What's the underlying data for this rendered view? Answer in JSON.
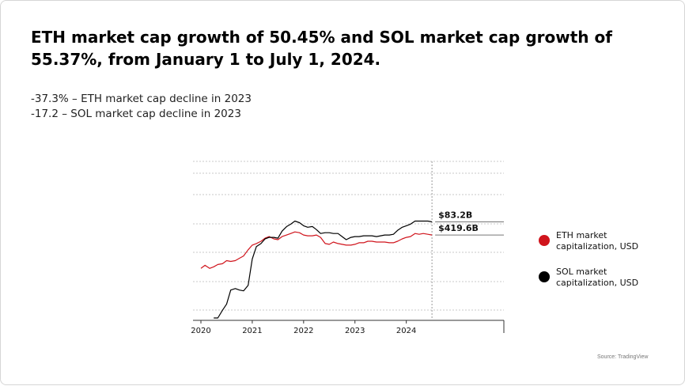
{
  "header": {
    "title": "ETH market cap growth of 50.45% and SOL market cap growth of 55.37%, from January 1 to July 1, 2024."
  },
  "stats": [
    "-37.3% – ETH market cap decline in 2023",
    "-17.2 – SOL market cap decline in 2023"
  ],
  "legend": [
    {
      "label": "ETH market capitalization, USD",
      "color": "#d0141c"
    },
    {
      "label": "SOL market capitalization, USD",
      "color": "#000000"
    }
  ],
  "source": "Source: TradingView",
  "chart_data": {
    "type": "line",
    "x_ticks": [
      "2020",
      "2021",
      "2022",
      "2023",
      "2024"
    ],
    "x_range": [
      2020.0,
      2025.9
    ],
    "grid": true,
    "y_scale": "unlabeled",
    "series": [
      {
        "name": "ETH market capitalization, USD",
        "color": "#d0141c",
        "last_label": "$419.6B",
        "points": [
          [
            2020.0,
            0.32
          ],
          [
            2020.08,
            0.34
          ],
          [
            2020.17,
            0.32
          ],
          [
            2020.25,
            0.33
          ],
          [
            2020.33,
            0.345
          ],
          [
            2020.42,
            0.35
          ],
          [
            2020.5,
            0.37
          ],
          [
            2020.58,
            0.365
          ],
          [
            2020.67,
            0.37
          ],
          [
            2020.75,
            0.385
          ],
          [
            2020.83,
            0.4
          ],
          [
            2020.92,
            0.44
          ],
          [
            2021.0,
            0.47
          ],
          [
            2021.08,
            0.48
          ],
          [
            2021.17,
            0.495
          ],
          [
            2021.25,
            0.515
          ],
          [
            2021.33,
            0.525
          ],
          [
            2021.42,
            0.51
          ],
          [
            2021.5,
            0.505
          ],
          [
            2021.58,
            0.525
          ],
          [
            2021.67,
            0.535
          ],
          [
            2021.75,
            0.545
          ],
          [
            2021.83,
            0.555
          ],
          [
            2021.92,
            0.55
          ],
          [
            2022.0,
            0.535
          ],
          [
            2022.08,
            0.53
          ],
          [
            2022.17,
            0.53
          ],
          [
            2022.25,
            0.535
          ],
          [
            2022.33,
            0.52
          ],
          [
            2022.42,
            0.48
          ],
          [
            2022.5,
            0.475
          ],
          [
            2022.58,
            0.49
          ],
          [
            2022.67,
            0.48
          ],
          [
            2022.75,
            0.475
          ],
          [
            2022.83,
            0.47
          ],
          [
            2022.92,
            0.47
          ],
          [
            2023.0,
            0.475
          ],
          [
            2023.08,
            0.485
          ],
          [
            2023.17,
            0.485
          ],
          [
            2023.25,
            0.495
          ],
          [
            2023.33,
            0.495
          ],
          [
            2023.42,
            0.49
          ],
          [
            2023.5,
            0.49
          ],
          [
            2023.58,
            0.49
          ],
          [
            2023.67,
            0.485
          ],
          [
            2023.75,
            0.485
          ],
          [
            2023.83,
            0.495
          ],
          [
            2023.92,
            0.51
          ],
          [
            2024.0,
            0.52
          ],
          [
            2024.08,
            0.525
          ],
          [
            2024.17,
            0.545
          ],
          [
            2024.25,
            0.54
          ],
          [
            2024.33,
            0.545
          ],
          [
            2024.42,
            0.54
          ],
          [
            2024.5,
            0.535
          ]
        ]
      },
      {
        "name": "SOL market capitalization, USD",
        "color": "#000000",
        "last_label": "$83.2B",
        "points": [
          [
            2020.25,
            0.0
          ],
          [
            2020.33,
            0.0
          ],
          [
            2020.42,
            0.05
          ],
          [
            2020.5,
            0.09
          ],
          [
            2020.58,
            0.18
          ],
          [
            2020.67,
            0.19
          ],
          [
            2020.75,
            0.18
          ],
          [
            2020.83,
            0.175
          ],
          [
            2020.92,
            0.21
          ],
          [
            2021.0,
            0.38
          ],
          [
            2021.08,
            0.46
          ],
          [
            2021.17,
            0.48
          ],
          [
            2021.25,
            0.51
          ],
          [
            2021.33,
            0.52
          ],
          [
            2021.42,
            0.52
          ],
          [
            2021.5,
            0.515
          ],
          [
            2021.58,
            0.56
          ],
          [
            2021.67,
            0.59
          ],
          [
            2021.75,
            0.605
          ],
          [
            2021.83,
            0.625
          ],
          [
            2021.92,
            0.615
          ],
          [
            2022.0,
            0.595
          ],
          [
            2022.08,
            0.585
          ],
          [
            2022.17,
            0.59
          ],
          [
            2022.25,
            0.57
          ],
          [
            2022.33,
            0.545
          ],
          [
            2022.42,
            0.55
          ],
          [
            2022.5,
            0.55
          ],
          [
            2022.58,
            0.545
          ],
          [
            2022.67,
            0.545
          ],
          [
            2022.75,
            0.525
          ],
          [
            2022.83,
            0.505
          ],
          [
            2022.92,
            0.52
          ],
          [
            2023.0,
            0.525
          ],
          [
            2023.08,
            0.525
          ],
          [
            2023.17,
            0.53
          ],
          [
            2023.25,
            0.53
          ],
          [
            2023.33,
            0.53
          ],
          [
            2023.42,
            0.525
          ],
          [
            2023.5,
            0.53
          ],
          [
            2023.58,
            0.535
          ],
          [
            2023.67,
            0.535
          ],
          [
            2023.75,
            0.54
          ],
          [
            2023.83,
            0.565
          ],
          [
            2023.92,
            0.585
          ],
          [
            2024.0,
            0.595
          ],
          [
            2024.08,
            0.605
          ],
          [
            2024.17,
            0.625
          ],
          [
            2024.25,
            0.625
          ],
          [
            2024.33,
            0.625
          ],
          [
            2024.42,
            0.625
          ],
          [
            2024.5,
            0.62
          ]
        ]
      }
    ]
  }
}
